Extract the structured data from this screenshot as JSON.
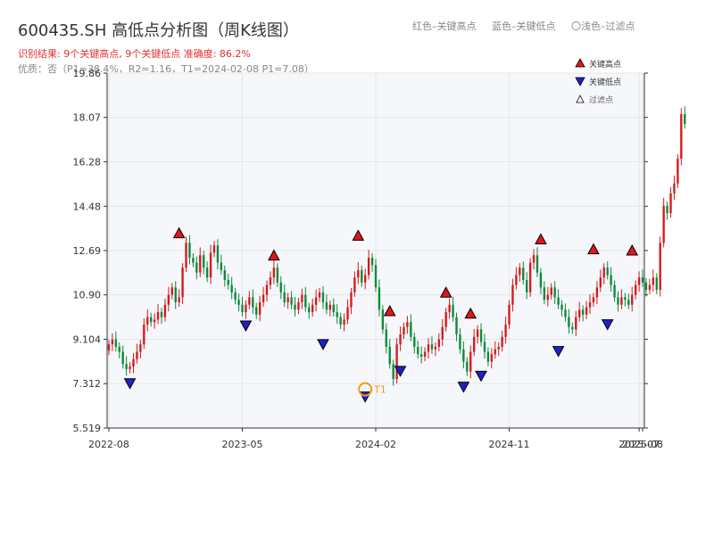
{
  "header": {
    "title": "600435.SH 高低点分析图（周K线图）",
    "result_text": "识别结果: 9个关键高点, 9个关键低点   准确度: 86.2%",
    "quality_text": "优质：否（P1=38.4%，R2=1.16，T1=2024-02-08 P1=7.08）"
  },
  "top_legend": {
    "red": "红色–关键高点",
    "blue": "蓝色–关键低点",
    "light": "〇浅色–过滤点"
  },
  "colors": {
    "up": "#d7191c",
    "down": "#0a8a3a",
    "high_marker": "#e3141b",
    "low_marker": "#1f1fd0",
    "highlight": "#f39c12",
    "plot_bg": "#f5f7fa",
    "grid": "#e3e6ea"
  },
  "chart_data": {
    "type": "candlestick",
    "ylim": [
      5.519,
      19.86
    ],
    "y_ticks": [
      "5.519",
      "7.312",
      "9.104",
      "10.90",
      "12.69",
      "14.48",
      "16.28",
      "18.07",
      "19.86"
    ],
    "x_ticks": [
      {
        "label": "2022-08",
        "index": 0
      },
      {
        "label": "2023-05",
        "index": 38
      },
      {
        "label": "2024-02",
        "index": 76
      },
      {
        "label": "2024-11",
        "index": 114
      },
      {
        "label": "2025-07",
        "index": 151
      },
      {
        "label": "2025-08",
        "index": 152
      }
    ],
    "x_domain": [
      -0.5,
      152.5
    ],
    "grid": true,
    "legend_position": "top-right",
    "legend": {
      "high": "关键高点",
      "low": "关键低点",
      "filtered": "过滤点"
    },
    "annotation": {
      "label": "T1",
      "index": 73,
      "value": 7.08
    },
    "closes": [
      8.9,
      9.1,
      8.8,
      8.6,
      8.1,
      7.9,
      8.0,
      8.3,
      8.6,
      8.9,
      9.7,
      10.0,
      9.8,
      9.9,
      10.2,
      10.0,
      10.5,
      10.9,
      11.2,
      10.6,
      10.8,
      12.0,
      13.0,
      12.4,
      12.2,
      11.8,
      12.5,
      12.0,
      11.6,
      12.6,
      12.9,
      12.2,
      11.9,
      11.5,
      11.3,
      11.0,
      10.7,
      10.5,
      10.2,
      10.5,
      10.8,
      10.4,
      10.1,
      10.6,
      10.9,
      11.3,
      11.6,
      12.0,
      11.4,
      11.0,
      10.6,
      10.8,
      10.5,
      10.3,
      10.6,
      10.9,
      10.4,
      10.2,
      10.5,
      10.8,
      11.0,
      10.6,
      10.3,
      10.5,
      10.2,
      10.0,
      9.7,
      9.9,
      10.4,
      11.0,
      11.6,
      11.9,
      11.4,
      11.7,
      12.4,
      12.1,
      11.2,
      10.3,
      9.5,
      8.8,
      8.1,
      7.5,
      8.9,
      9.3,
      9.6,
      9.8,
      9.2,
      8.8,
      8.5,
      8.4,
      8.6,
      8.9,
      8.7,
      8.8,
      9.1,
      9.6,
      10.2,
      10.5,
      10.0,
      9.3,
      8.7,
      8.2,
      7.8,
      8.6,
      9.2,
      9.5,
      9.0,
      8.6,
      8.2,
      8.5,
      8.7,
      8.8,
      9.2,
      9.7,
      10.5,
      11.3,
      11.7,
      12.0,
      11.5,
      11.0,
      12.2,
      12.5,
      11.8,
      11.2,
      10.7,
      10.9,
      11.2,
      10.8,
      10.5,
      10.3,
      10.0,
      9.6,
      9.5,
      10.0,
      10.3,
      10.1,
      10.4,
      10.6,
      10.8,
      11.2,
      11.6,
      12.0,
      11.7,
      11.3,
      10.8,
      10.5,
      10.8,
      10.7,
      10.5,
      10.9,
      11.3,
      11.6,
      11.4,
      11.1,
      11.3,
      11.6,
      11.1,
      13.0,
      14.5,
      14.2,
      15.0,
      15.4,
      16.4,
      18.2,
      17.8
    ],
    "key_highs": [
      {
        "index": 20,
        "value": 13.1
      },
      {
        "index": 47,
        "value": 12.2
      },
      {
        "index": 71,
        "value": 13.0
      },
      {
        "index": 80,
        "value": 9.95
      },
      {
        "index": 96,
        "value": 10.7
      },
      {
        "index": 103,
        "value": 9.85
      },
      {
        "index": 123,
        "value": 12.85
      },
      {
        "index": 138,
        "value": 12.45
      },
      {
        "index": 149,
        "value": 12.4
      }
    ],
    "key_lows": [
      {
        "index": 6,
        "value": 7.62
      },
      {
        "index": 39,
        "value": 9.95
      },
      {
        "index": 61,
        "value": 9.2
      },
      {
        "index": 73,
        "value": 7.08
      },
      {
        "index": 83,
        "value": 8.12
      },
      {
        "index": 101,
        "value": 7.48
      },
      {
        "index": 106,
        "value": 7.92
      },
      {
        "index": 128,
        "value": 8.92
      },
      {
        "index": 142,
        "value": 10.0
      }
    ]
  }
}
